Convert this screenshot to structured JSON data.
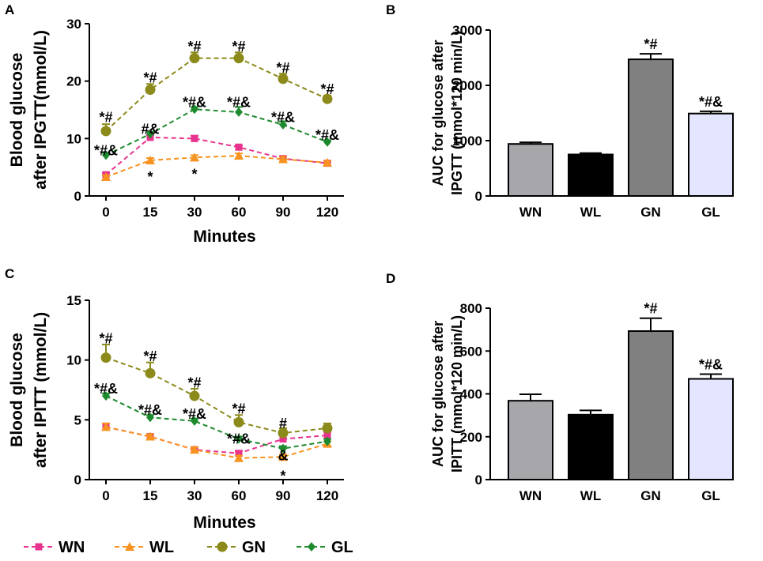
{
  "colors": {
    "WN": "#e8348f",
    "WL": "#f7931e",
    "GN": "#8b8a1a",
    "GL": "#1e8a2e",
    "bar_WN": "#a7a7ab",
    "bar_WL": "#000000",
    "bar_GN": "#808080",
    "bar_GL": "#e4e6ff"
  },
  "legend": {
    "title": "",
    "entries": [
      "WN",
      "WL",
      "GN",
      "GL"
    ]
  },
  "chart_data": [
    {
      "id": "A",
      "panel_label": "A",
      "type": "line",
      "xlabel": "Minutes",
      "ylabel_lines": [
        "Blood glucose",
        "after IPGTT(mmol/L)"
      ],
      "categories": [
        "0",
        "15",
        "30",
        "60",
        "90",
        "120"
      ],
      "ylim": [
        0,
        30
      ],
      "yticks": [
        0,
        10,
        20,
        30
      ],
      "series": [
        {
          "name": "WN",
          "values": [
            3.7,
            10.2,
            10.0,
            8.5,
            6.5,
            5.7
          ],
          "errors": [
            0.3,
            0.4,
            0.5,
            0.3,
            0.4,
            0.3
          ]
        },
        {
          "name": "WL",
          "values": [
            3.3,
            6.2,
            6.7,
            7.0,
            6.4,
            5.8
          ],
          "errors": [
            0.3,
            0.4,
            0.4,
            0.4,
            0.4,
            0.3
          ]
        },
        {
          "name": "GN",
          "values": [
            11.3,
            18.5,
            24.0,
            24.0,
            20.4,
            16.9
          ],
          "errors": [
            1.2,
            1.0,
            1.0,
            1.0,
            0.9,
            0.6
          ]
        },
        {
          "name": "GL",
          "values": [
            7.1,
            10.8,
            15.1,
            14.6,
            12.4,
            9.4
          ],
          "errors": [
            0.4,
            0.4,
            0.4,
            0.9,
            0.6,
            0.3
          ]
        }
      ],
      "annotations": [
        {
          "text": "*#",
          "x": 0,
          "y": 13.7
        },
        {
          "text": "*#&",
          "x": 0,
          "y": 7.9
        },
        {
          "text": "*#",
          "x": 1,
          "y": 20.6
        },
        {
          "text": "#&",
          "x": 1,
          "y": 11.6
        },
        {
          "text": "*",
          "x": 1,
          "y": 3.3
        },
        {
          "text": "*#",
          "x": 2,
          "y": 26.0
        },
        {
          "text": "*#&",
          "x": 2,
          "y": 16.3
        },
        {
          "text": "*",
          "x": 2,
          "y": 3.8
        },
        {
          "text": "*#",
          "x": 3,
          "y": 26.0
        },
        {
          "text": "*#&",
          "x": 3,
          "y": 16.3
        },
        {
          "text": "*#",
          "x": 4,
          "y": 22.3
        },
        {
          "text": "*#&",
          "x": 4,
          "y": 13.7
        },
        {
          "text": "*#",
          "x": 5,
          "y": 18.6
        },
        {
          "text": "*#&",
          "x": 5,
          "y": 10.6
        }
      ]
    },
    {
      "id": "B",
      "panel_label": "B",
      "type": "bar",
      "xlabel": "",
      "ylabel_lines": [
        "AUC for glucose after",
        "IPGTT (mmol*120 min/L)"
      ],
      "categories": [
        "WN",
        "WL",
        "GN",
        "GL"
      ],
      "values": [
        940,
        750,
        2470,
        1490
      ],
      "errors": [
        30,
        25,
        100,
        40
      ],
      "ylim": [
        0,
        3000
      ],
      "yticks": [
        0,
        1000,
        2000,
        3000
      ],
      "annotations": [
        {
          "text": "*#",
          "index": 2
        },
        {
          "text": "*#&",
          "index": 3
        }
      ]
    },
    {
      "id": "C",
      "panel_label": "C",
      "type": "line",
      "xlabel": "Minutes",
      "ylabel_lines": [
        "Blood glucose",
        "after IPITT (mmol/L)"
      ],
      "categories": [
        "0",
        "15",
        "30",
        "60",
        "90",
        "120"
      ],
      "ylim": [
        0,
        15
      ],
      "yticks": [
        0,
        5,
        10,
        15
      ],
      "series": [
        {
          "name": "WN",
          "values": [
            4.4,
            3.6,
            2.5,
            2.2,
            3.4,
            3.7
          ],
          "errors": [
            0.3,
            0.2,
            0.2,
            0.2,
            0.3,
            0.3
          ]
        },
        {
          "name": "WL",
          "values": [
            4.4,
            3.6,
            2.5,
            1.8,
            1.9,
            3.0
          ],
          "errors": [
            0.3,
            0.2,
            0.2,
            0.2,
            0.2,
            0.2
          ]
        },
        {
          "name": "GN",
          "values": [
            10.2,
            8.9,
            7.0,
            4.8,
            3.9,
            4.3
          ],
          "errors": [
            1.1,
            0.9,
            0.6,
            0.6,
            0.4,
            0.4
          ]
        },
        {
          "name": "GL",
          "values": [
            7.0,
            5.2,
            4.9,
            3.4,
            2.6,
            3.2
          ],
          "errors": [
            0.2,
            0.2,
            0.2,
            0.2,
            0.2,
            0.2
          ]
        }
      ],
      "annotations": [
        {
          "text": "*#",
          "x": 0,
          "y": 11.8
        },
        {
          "text": "*#&",
          "x": 0,
          "y": 7.6
        },
        {
          "text": "*#",
          "x": 1,
          "y": 10.3
        },
        {
          "text": "*#&",
          "x": 1,
          "y": 5.8
        },
        {
          "text": "*#",
          "x": 2,
          "y": 8.1
        },
        {
          "text": "*#&",
          "x": 2,
          "y": 5.5
        },
        {
          "text": "*#",
          "x": 3,
          "y": 5.9
        },
        {
          "text": "*#&",
          "x": 3,
          "y": 3.4
        },
        {
          "text": "#",
          "x": 4,
          "y": 4.7
        },
        {
          "text": "&",
          "x": 4,
          "y": 2.0
        },
        {
          "text": "*",
          "x": 4,
          "y": 0.3
        }
      ]
    },
    {
      "id": "D",
      "panel_label": "D",
      "type": "bar",
      "xlabel": "",
      "ylabel_lines": [
        "AUC for glucose after",
        "IPITT (mmol*120 min/L)"
      ],
      "categories": [
        "WN",
        "WL",
        "GN",
        "GL"
      ],
      "values": [
        368,
        303,
        693,
        470
      ],
      "errors": [
        30,
        20,
        60,
        22
      ],
      "ylim": [
        0,
        800
      ],
      "yticks": [
        0,
        200,
        400,
        600,
        800
      ],
      "annotations": [
        {
          "text": "*#",
          "index": 2
        },
        {
          "text": "*#&",
          "index": 3
        }
      ]
    }
  ]
}
